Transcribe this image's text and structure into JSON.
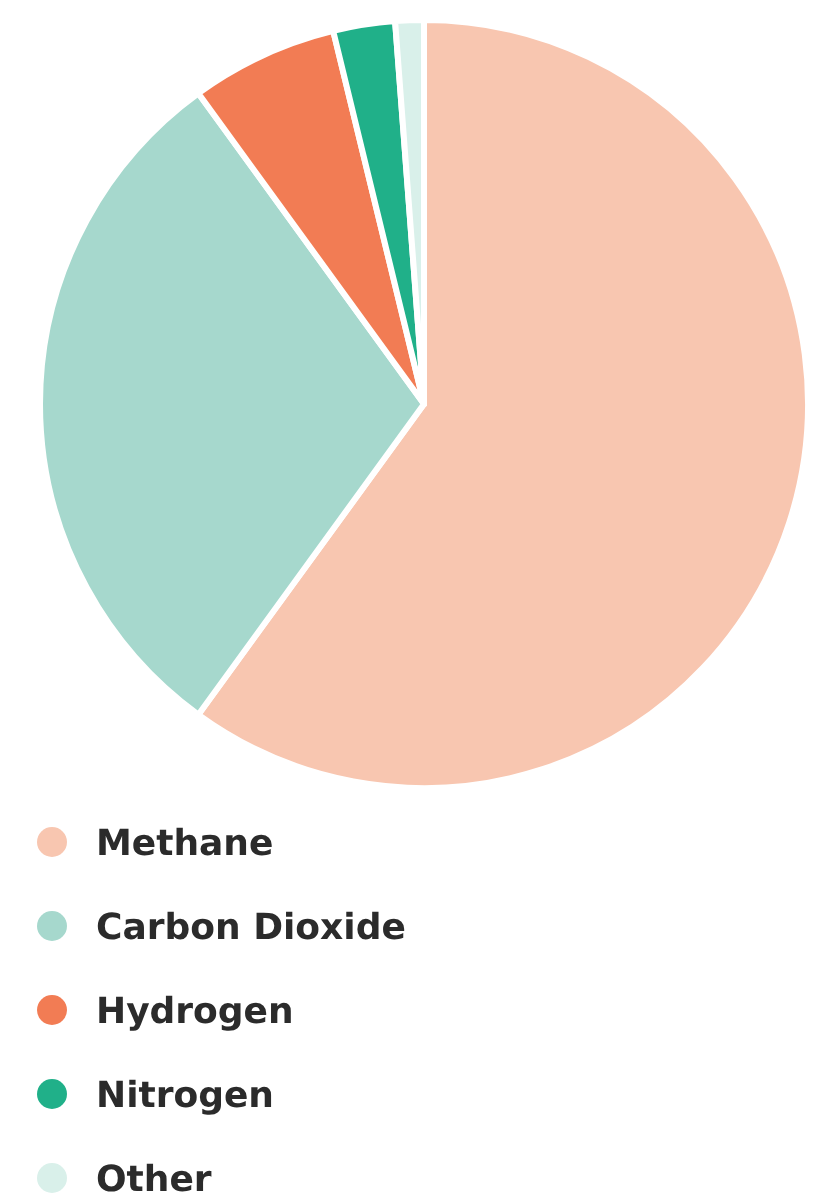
{
  "chart_data": {
    "type": "pie",
    "categories": [
      "Methane",
      "Carbon Dioxide",
      "Hydrogen",
      "Nitrogen",
      "Other"
    ],
    "values": [
      60,
      30,
      6.2,
      2.6,
      1.2
    ],
    "colors": [
      "#f8c6b0",
      "#a6d8cd",
      "#f27c54",
      "#20b089",
      "#d9f0ea"
    ],
    "legend": "bottom"
  }
}
